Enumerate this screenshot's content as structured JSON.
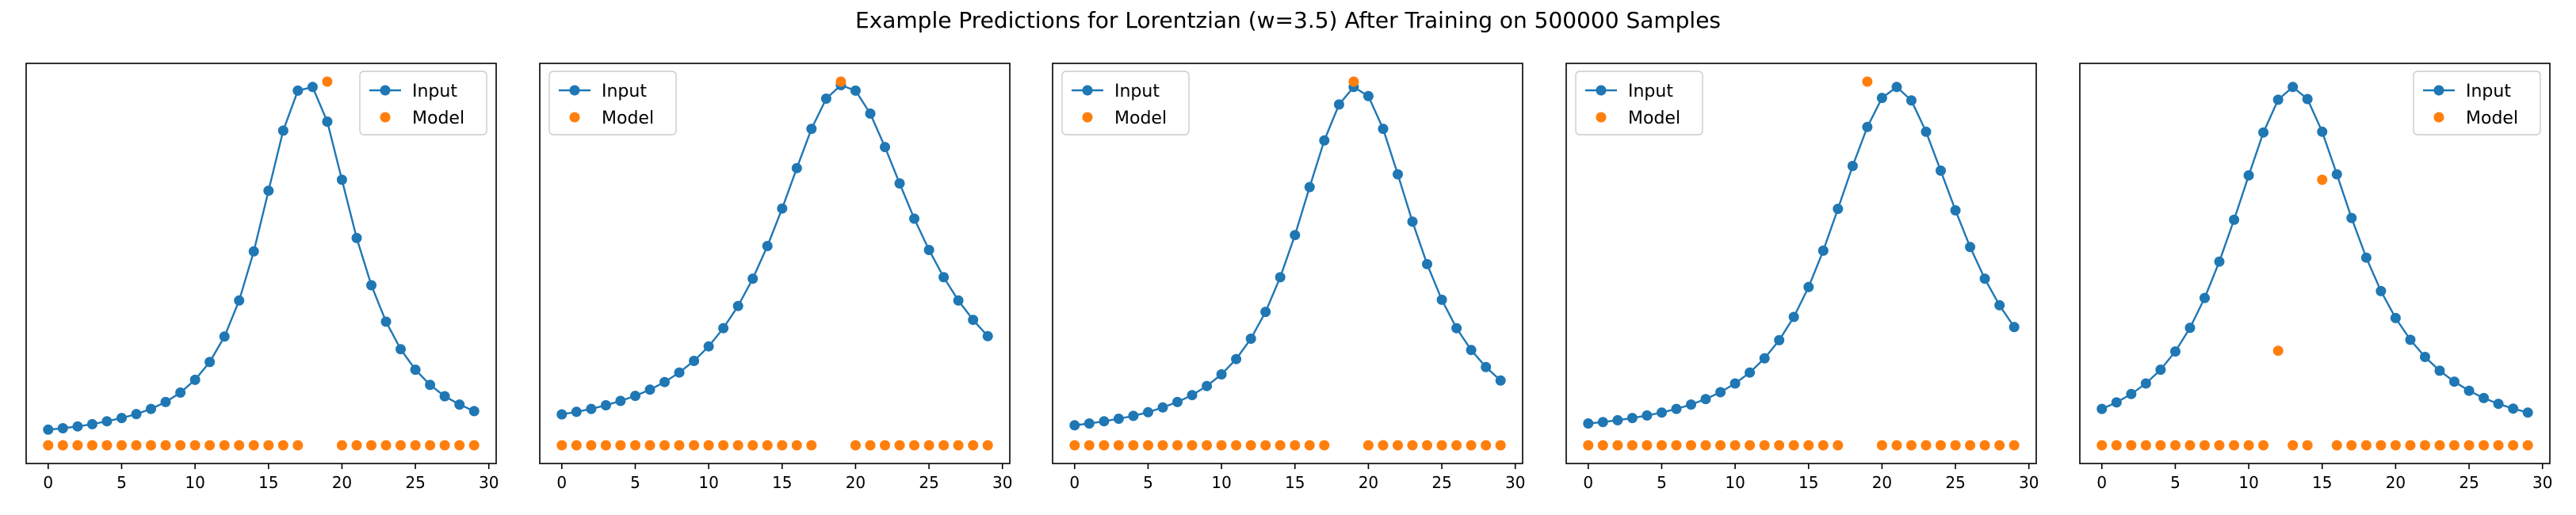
{
  "figure": {
    "title": "Example Predictions for Lorentzian (w=3.5) After Training on 500000 Samples"
  },
  "colors": {
    "input": "#1f77b4",
    "model": "#ff7f0e"
  },
  "chart_data": [
    {
      "type": "line",
      "series": [
        {
          "name": "Input",
          "x": [
            0,
            1,
            2,
            3,
            4,
            5,
            6,
            7,
            8,
            9,
            10,
            11,
            12,
            13,
            14,
            15,
            16,
            17,
            18,
            19,
            20,
            21,
            22,
            23,
            24,
            25,
            26,
            27,
            28,
            29
          ],
          "values": [
            0.043,
            0.047,
            0.052,
            0.058,
            0.066,
            0.075,
            0.086,
            0.1,
            0.119,
            0.145,
            0.18,
            0.229,
            0.299,
            0.398,
            0.533,
            0.7,
            0.865,
            0.975,
            0.985,
            0.89,
            0.73,
            0.57,
            0.44,
            0.34,
            0.264,
            0.208,
            0.166,
            0.135,
            0.112,
            0.094
          ]
        },
        {
          "name": "Model",
          "x": [
            0,
            1,
            2,
            3,
            4,
            5,
            6,
            7,
            8,
            9,
            10,
            11,
            12,
            13,
            14,
            15,
            16,
            17,
            19,
            20,
            21,
            22,
            23,
            24,
            25,
            26,
            27,
            28,
            29
          ],
          "values": [
            0,
            0,
            0,
            0,
            0,
            0,
            0,
            0,
            0,
            0,
            0,
            0,
            0,
            0,
            0,
            0,
            0,
            0,
            1.0,
            0,
            0,
            0,
            0,
            0,
            0,
            0,
            0,
            0,
            0
          ]
        }
      ],
      "xticks": [
        0,
        5,
        10,
        15,
        20,
        25,
        30
      ],
      "xlim": [
        -1.5,
        30.5
      ],
      "ylim": [
        -0.05,
        1.05
      ],
      "legend": "upper right"
    },
    {
      "type": "line",
      "series": [
        {
          "name": "Input",
          "x": [
            0,
            1,
            2,
            3,
            4,
            5,
            6,
            7,
            8,
            9,
            10,
            11,
            12,
            13,
            14,
            15,
            16,
            17,
            18,
            19,
            20,
            21,
            22,
            23,
            24,
            25,
            26,
            27,
            28,
            29
          ],
          "values": [
            0.085,
            0.092,
            0.1,
            0.11,
            0.122,
            0.136,
            0.153,
            0.174,
            0.2,
            0.232,
            0.272,
            0.322,
            0.383,
            0.458,
            0.548,
            0.651,
            0.762,
            0.87,
            0.953,
            0.99,
            0.975,
            0.912,
            0.82,
            0.72,
            0.623,
            0.537,
            0.462,
            0.398,
            0.345,
            0.3
          ]
        },
        {
          "name": "Model",
          "x": [
            0,
            1,
            2,
            3,
            4,
            5,
            6,
            7,
            8,
            9,
            10,
            11,
            12,
            13,
            14,
            15,
            16,
            17,
            19,
            20,
            21,
            22,
            23,
            24,
            25,
            26,
            27,
            28,
            29
          ],
          "values": [
            0,
            0,
            0,
            0,
            0,
            0,
            0,
            0,
            0,
            0,
            0,
            0,
            0,
            0,
            0,
            0,
            0,
            0,
            1.0,
            0,
            0,
            0,
            0,
            0,
            0,
            0,
            0,
            0,
            0
          ]
        }
      ],
      "xticks": [
        0,
        5,
        10,
        15,
        20,
        25,
        30
      ],
      "xlim": [
        -1.5,
        30.5
      ],
      "ylim": [
        -0.05,
        1.05
      ],
      "legend": "upper left"
    },
    {
      "type": "line",
      "series": [
        {
          "name": "Input",
          "x": [
            0,
            1,
            2,
            3,
            4,
            5,
            6,
            7,
            8,
            9,
            10,
            11,
            12,
            13,
            14,
            15,
            16,
            17,
            18,
            19,
            20,
            21,
            22,
            23,
            24,
            25,
            26,
            27,
            28,
            29
          ],
          "values": [
            0.055,
            0.06,
            0.066,
            0.073,
            0.081,
            0.091,
            0.104,
            0.119,
            0.138,
            0.163,
            0.195,
            0.237,
            0.293,
            0.367,
            0.462,
            0.578,
            0.71,
            0.838,
            0.937,
            0.985,
            0.96,
            0.87,
            0.745,
            0.615,
            0.498,
            0.4,
            0.322,
            0.262,
            0.215,
            0.178
          ]
        },
        {
          "name": "Model",
          "x": [
            0,
            1,
            2,
            3,
            4,
            5,
            6,
            7,
            8,
            9,
            10,
            11,
            12,
            13,
            14,
            15,
            16,
            17,
            19,
            20,
            21,
            22,
            23,
            24,
            25,
            26,
            27,
            28,
            29
          ],
          "values": [
            0,
            0,
            0,
            0,
            0,
            0,
            0,
            0,
            0,
            0,
            0,
            0,
            0,
            0,
            0,
            0,
            0,
            0,
            1.0,
            0,
            0,
            0,
            0,
            0,
            0,
            0,
            0,
            0,
            0
          ]
        }
      ],
      "xticks": [
        0,
        5,
        10,
        15,
        20,
        25,
        30
      ],
      "xlim": [
        -1.5,
        30.5
      ],
      "ylim": [
        -0.05,
        1.05
      ],
      "legend": "upper left"
    },
    {
      "type": "line",
      "series": [
        {
          "name": "Input",
          "x": [
            0,
            1,
            2,
            3,
            4,
            5,
            6,
            7,
            8,
            9,
            10,
            11,
            12,
            13,
            14,
            15,
            16,
            17,
            18,
            19,
            20,
            21,
            22,
            23,
            24,
            25,
            26,
            27,
            28,
            29
          ],
          "values": [
            0.06,
            0.064,
            0.069,
            0.075,
            0.082,
            0.09,
            0.1,
            0.112,
            0.127,
            0.146,
            0.17,
            0.2,
            0.239,
            0.289,
            0.353,
            0.435,
            0.535,
            0.65,
            0.768,
            0.875,
            0.955,
            0.985,
            0.948,
            0.862,
            0.755,
            0.646,
            0.545,
            0.458,
            0.385,
            0.325
          ]
        },
        {
          "name": "Model",
          "x": [
            0,
            1,
            2,
            3,
            4,
            5,
            6,
            7,
            8,
            9,
            10,
            11,
            12,
            13,
            14,
            15,
            16,
            17,
            19,
            20,
            21,
            22,
            23,
            24,
            25,
            26,
            27,
            28,
            29
          ],
          "values": [
            0,
            0,
            0,
            0,
            0,
            0,
            0,
            0,
            0,
            0,
            0,
            0,
            0,
            0,
            0,
            0,
            0,
            0,
            1.0,
            0,
            0,
            0,
            0,
            0,
            0,
            0,
            0,
            0,
            0
          ]
        }
      ],
      "xticks": [
        0,
        5,
        10,
        15,
        20,
        25,
        30
      ],
      "xlim": [
        -1.5,
        30.5
      ],
      "ylim": [
        -0.05,
        1.05
      ],
      "legend": "upper left"
    },
    {
      "type": "line",
      "series": [
        {
          "name": "Input",
          "x": [
            0,
            1,
            2,
            3,
            4,
            5,
            6,
            7,
            8,
            9,
            10,
            11,
            12,
            13,
            14,
            15,
            16,
            17,
            18,
            19,
            20,
            21,
            22,
            23,
            24,
            25,
            26,
            27,
            28,
            29
          ],
          "values": [
            0.1,
            0.118,
            0.141,
            0.17,
            0.208,
            0.258,
            0.323,
            0.405,
            0.505,
            0.62,
            0.742,
            0.86,
            0.95,
            0.985,
            0.952,
            0.862,
            0.745,
            0.625,
            0.516,
            0.424,
            0.35,
            0.29,
            0.243,
            0.205,
            0.175,
            0.15,
            0.13,
            0.114,
            0.101,
            0.09
          ]
        },
        {
          "name": "Model",
          "x": [
            0,
            1,
            2,
            3,
            4,
            5,
            6,
            7,
            8,
            9,
            10,
            11,
            12,
            13,
            14,
            15,
            16,
            17,
            18,
            19,
            20,
            21,
            22,
            23,
            24,
            25,
            26,
            27,
            28,
            29
          ],
          "values": [
            0,
            0,
            0,
            0,
            0,
            0,
            0,
            0,
            0,
            0,
            0,
            0,
            0.26,
            0,
            0,
            0.73,
            0,
            0,
            0,
            0,
            0,
            0,
            0,
            0,
            0,
            0,
            0,
            0,
            0,
            0
          ]
        }
      ],
      "xticks": [
        0,
        5,
        10,
        15,
        20,
        25,
        30
      ],
      "xlim": [
        -1.5,
        30.5
      ],
      "ylim": [
        -0.05,
        1.05
      ],
      "legend": "upper right"
    }
  ]
}
